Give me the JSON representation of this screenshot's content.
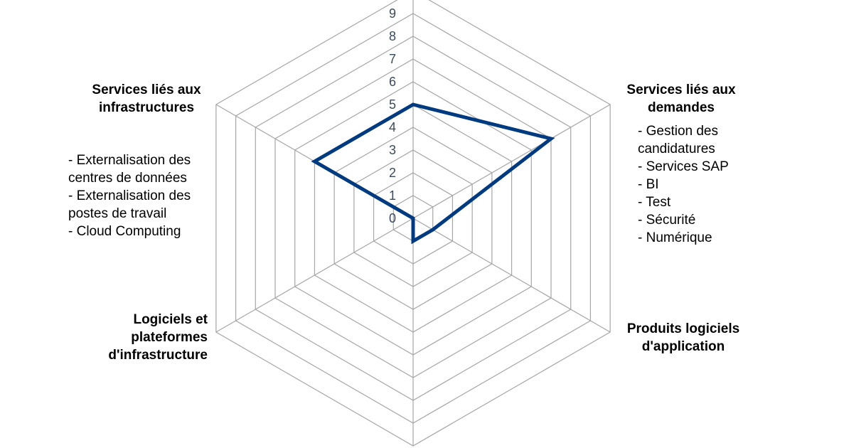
{
  "chart_data": {
    "type": "radar",
    "axes": [
      {
        "title": "",
        "items": []
      },
      {
        "title": "Services liés aux demandes",
        "items": [
          "- Gestion des candidatures",
          "- Services SAP",
          "- BI",
          "- Test",
          "- Sécurité",
          "- Numérique"
        ]
      },
      {
        "title": "Produits logiciels d'application",
        "items": []
      },
      {
        "title": "",
        "items": []
      },
      {
        "title": "Logiciels et plateformes d'infrastructure",
        "items": []
      },
      {
        "title": "Services liés aux infrastructures",
        "items": [
          "- Externalisation des centres de données",
          "- Externalisation des postes de travail",
          "- Cloud Computing"
        ]
      }
    ],
    "ticks": [
      "0",
      "1",
      "2",
      "3",
      "4",
      "5",
      "6",
      "7",
      "8",
      "9"
    ],
    "rlim": [
      0,
      10
    ],
    "series": [
      {
        "values": [
          5,
          7,
          1,
          1,
          0,
          5
        ],
        "color": "#003a80"
      }
    ],
    "grid": true,
    "grid_color": "#a6a6a6"
  }
}
